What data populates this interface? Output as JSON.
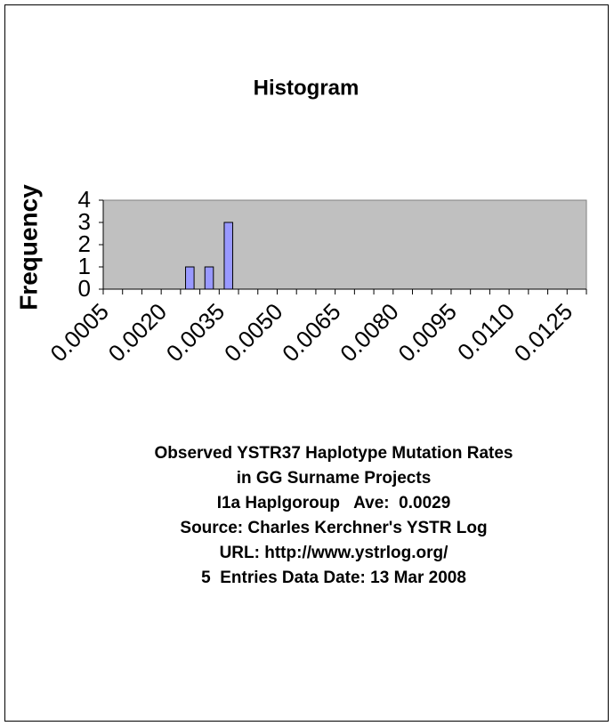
{
  "chart_data": {
    "type": "bar",
    "title": "Histogram",
    "y_label": "Frequency",
    "categories": [
      "0.0005",
      null,
      null,
      "0.0020",
      null,
      null,
      "0.0035",
      null,
      null,
      "0.0050",
      null,
      null,
      "0.0065",
      null,
      null,
      "0.0080",
      null,
      null,
      "0.0095",
      null,
      null,
      "0.0110",
      null,
      null,
      "0.0125"
    ],
    "values": [
      0,
      0,
      0,
      0,
      1,
      1,
      3,
      0,
      0,
      0,
      0,
      0,
      0,
      0,
      0,
      0,
      0,
      0,
      0,
      0,
      0,
      0,
      0,
      0,
      0
    ],
    "color": "#9999ff",
    "ylim": [
      0,
      4
    ],
    "yticks": [
      0,
      1,
      2,
      3,
      4
    ],
    "caption": [
      "Observed YSTR37 Haplotype Mutation Rates",
      "in GG Surname Projects",
      "I1a Haplgoroup   Ave:  0.0029",
      "Source: Charles Kerchner's YSTR Log",
      "URL: http://www.ystrlog.org/",
      "5  Entries Data Date: 13 Mar 2008"
    ]
  }
}
